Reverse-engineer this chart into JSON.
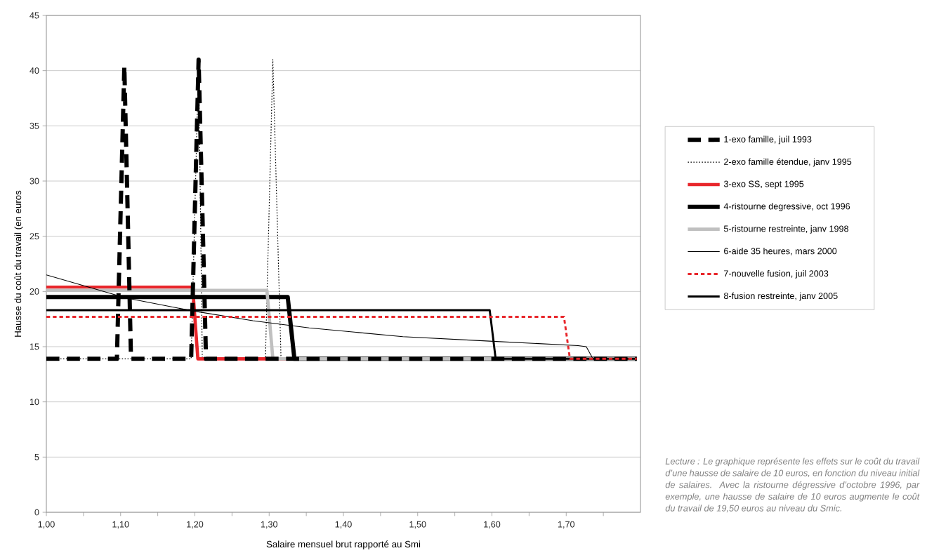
{
  "chart_data": {
    "type": "line",
    "xlabel": "Salaire mensuel brut rapporté au Smi",
    "ylabel": "Hausse du coût du travail (en euros",
    "xlim": [
      1.0,
      1.8
    ],
    "xticks": [
      {
        "value": 1.0,
        "label": "1,00"
      },
      {
        "value": 1.05,
        "label": null
      },
      {
        "value": 1.1,
        "label": "1,10"
      },
      {
        "value": 1.15,
        "label": null
      },
      {
        "value": 1.2,
        "label": "1,20"
      },
      {
        "value": 1.25,
        "label": null
      },
      {
        "value": 1.3,
        "label": "1,30"
      },
      {
        "value": 1.35,
        "label": null
      },
      {
        "value": 1.4,
        "label": "1,40"
      },
      {
        "value": 1.45,
        "label": null
      },
      {
        "value": 1.5,
        "label": "1,50"
      },
      {
        "value": 1.55,
        "label": null
      },
      {
        "value": 1.6,
        "label": "1,60"
      },
      {
        "value": 1.65,
        "label": null
      },
      {
        "value": 1.7,
        "label": "1,70"
      },
      {
        "value": 1.75,
        "label": null
      }
    ],
    "ylim": [
      0,
      45
    ],
    "yticks": [
      0,
      5,
      10,
      15,
      20,
      25,
      30,
      35,
      40,
      45
    ],
    "grid": "y",
    "legend": "right",
    "marker": "none",
    "series": [
      {
        "name": "1-exo famille, juil 1993",
        "color": "#000000",
        "line_style": "dashed",
        "x": [
          1.0,
          1.095,
          1.105,
          1.114,
          1.195,
          1.205,
          1.215,
          1.795
        ],
        "values": [
          13.9,
          13.9,
          40.4,
          13.9,
          13.9,
          41.0,
          13.9,
          13.9
        ]
      },
      {
        "name": "2-exo famille étendue, janv 1995",
        "color": "#000000",
        "line_style": "dotted",
        "x": [
          1.0,
          1.195,
          1.205,
          1.21,
          1.295,
          1.305,
          1.316,
          1.795
        ],
        "values": [
          13.9,
          13.9,
          41.0,
          13.9,
          13.9,
          41.0,
          13.9,
          13.9
        ]
      },
      {
        "name": "3-exo SS, sept 1995",
        "color": "#e8262b",
        "line_style": "solid",
        "x": [
          1.0,
          1.197,
          1.204,
          1.795
        ],
        "values": [
          20.4,
          20.4,
          13.9,
          13.9
        ]
      },
      {
        "name": "4-ristourne degressive, oct 1996",
        "color": "#000000",
        "line_style": "solid",
        "x": [
          1.0,
          1.325,
          1.334,
          1.795
        ],
        "values": [
          19.5,
          19.5,
          13.9,
          13.9
        ]
      },
      {
        "name": "5-ristourne restreinte, janv 1998",
        "color": "#c0c0c0",
        "line_style": "solid",
        "x": [
          1.0,
          1.297,
          1.305,
          1.795
        ],
        "values": [
          20.1,
          20.1,
          13.9,
          13.9
        ]
      },
      {
        "name": "6-aide 35 heures, mars 2000",
        "color": "#000000",
        "line_style": "solid",
        "x": [
          1.0,
          1.108,
          1.196,
          1.278,
          1.354,
          1.48,
          1.597,
          1.716,
          1.727,
          1.736,
          1.795
        ],
        "values": [
          21.5,
          19.4,
          18.25,
          17.35,
          16.7,
          15.9,
          15.5,
          15.1,
          15.0,
          13.9,
          13.9
        ]
      },
      {
        "name": "7-nouvelle fusion, juil 2003",
        "color": "#e8262b",
        "line_style": "dashed",
        "x": [
          1.0,
          1.697,
          1.705,
          1.795
        ],
        "values": [
          17.7,
          17.7,
          13.9,
          13.9
        ]
      },
      {
        "name": "8-fusion restreinte, janv 2005",
        "color": "#000000",
        "line_style": "solid",
        "x": [
          1.0,
          1.597,
          1.605,
          1.795
        ],
        "values": [
          18.3,
          18.3,
          13.9,
          13.9
        ]
      }
    ],
    "annotations": [
      "Lecture : Le graphique représente les effets sur le coût du travail d’une hausse de salaire de 10 euros, en fonction du niveau initial de salaires. Avec la ristourne dégressive d’octobre 1996, par exemple, une hausse de salaire de 10 euros augmente le coût du travail de 19,50 euros au niveau du Smic."
    ]
  }
}
